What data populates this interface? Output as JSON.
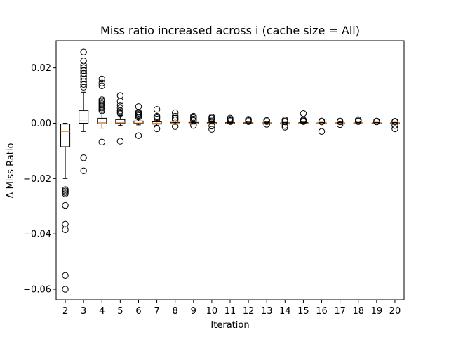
{
  "chart_data": {
    "type": "boxplot",
    "title": "Miss ratio increased across i (cache size = All)",
    "xlabel": "Iteration",
    "ylabel": "Δ Miss Ratio",
    "ylim": [
      -0.0638,
      0.0298
    ],
    "yticks": [
      0.02,
      0.0,
      -0.02,
      -0.04,
      -0.06
    ],
    "ytick_labels": [
      "0.02",
      "0.00",
      "−0.02",
      "−0.04",
      "−0.06"
    ],
    "grid": false,
    "categories": [
      "2",
      "3",
      "4",
      "5",
      "6",
      "7",
      "8",
      "9",
      "10",
      "11",
      "12",
      "13",
      "14",
      "15",
      "16",
      "17",
      "18",
      "19",
      "20"
    ],
    "boxes": [
      {
        "label": "2",
        "whislo": -0.02,
        "q1": -0.0085,
        "med": -0.003,
        "q3": -0.0003,
        "whishi": 0.0,
        "fliers": [
          -0.024,
          -0.0245,
          -0.025,
          -0.0255,
          -0.0297,
          -0.0365,
          -0.0385,
          -0.055,
          -0.06
        ]
      },
      {
        "label": "3",
        "whislo": -0.003,
        "q1": 0.0,
        "med": 0.0008,
        "q3": 0.0046,
        "whishi": 0.0112,
        "fliers": [
          0.013,
          0.014,
          0.015,
          0.016,
          0.017,
          0.018,
          0.019,
          0.02,
          0.021,
          0.0225,
          0.0257,
          -0.0125,
          -0.0172
        ]
      },
      {
        "label": "4",
        "whislo": -0.0018,
        "q1": -0.0002,
        "med": 0.0002,
        "q3": 0.0018,
        "whishi": 0.004,
        "fliers": [
          0.0045,
          0.005,
          0.0055,
          0.006,
          0.0065,
          0.007,
          0.0075,
          0.008,
          0.0085,
          0.0135,
          0.0145,
          0.016,
          -0.0068
        ]
      },
      {
        "label": "5",
        "whislo": -0.0008,
        "q1": -0.0001,
        "med": 0.0002,
        "q3": 0.0013,
        "whishi": 0.0028,
        "fliers": [
          0.0035,
          0.004,
          0.0045,
          0.0055,
          0.0065,
          0.008,
          0.01,
          -0.0065
        ]
      },
      {
        "label": "6",
        "whislo": -0.0006,
        "q1": -0.0001,
        "med": 0.0001,
        "q3": 0.0008,
        "whishi": 0.0016,
        "fliers": [
          0.0022,
          0.0028,
          0.0032,
          0.0036,
          0.004,
          0.006,
          -0.0045
        ]
      },
      {
        "label": "7",
        "whislo": -0.0008,
        "q1": -0.0003,
        "med": 0.0,
        "q3": 0.0005,
        "whishi": 0.0012,
        "fliers": [
          0.0015,
          0.002,
          0.0025,
          0.005,
          -0.002
        ]
      },
      {
        "label": "8",
        "whislo": -0.0004,
        "q1": -0.0001,
        "med": 0.0,
        "q3": 0.0003,
        "whishi": 0.0008,
        "fliers": [
          0.0012,
          0.0018,
          0.0025,
          0.0038,
          -0.0012
        ]
      },
      {
        "label": "9",
        "whislo": -0.0003,
        "q1": -0.0001,
        "med": 0.0,
        "q3": 0.0003,
        "whishi": 0.0007,
        "fliers": [
          0.001,
          0.0015,
          0.002,
          0.0025,
          -0.0008
        ]
      },
      {
        "label": "10",
        "whislo": -0.0003,
        "q1": -0.0001,
        "med": 0.0,
        "q3": 0.0002,
        "whishi": 0.0005,
        "fliers": [
          0.0008,
          0.0012,
          0.0018,
          0.0022,
          -0.001,
          -0.0022
        ]
      },
      {
        "label": "11",
        "whislo": -0.0002,
        "q1": 0.0,
        "med": 0.0,
        "q3": 0.0002,
        "whishi": 0.0004,
        "fliers": [
          0.0006,
          0.001,
          0.0014,
          0.0018
        ]
      },
      {
        "label": "12",
        "whislo": -0.0002,
        "q1": 0.0,
        "med": 0.0001,
        "q3": 0.0002,
        "whishi": 0.0004,
        "fliers": [
          0.0006,
          0.001,
          0.0014
        ]
      },
      {
        "label": "13",
        "whislo": -0.0002,
        "q1": -0.0001,
        "med": 0.0,
        "q3": 0.0001,
        "whishi": 0.0003,
        "fliers": [
          0.0006,
          0.001,
          -0.0004
        ]
      },
      {
        "label": "14",
        "whislo": -0.0003,
        "q1": -0.0001,
        "med": 0.0,
        "q3": 0.0001,
        "whishi": 0.0003,
        "fliers": [
          0.0005,
          0.0008,
          0.0012,
          -0.0008,
          -0.0014
        ]
      },
      {
        "label": "15",
        "whislo": -0.0001,
        "q1": 0.0,
        "med": 0.0,
        "q3": 0.0002,
        "whishi": 0.0004,
        "fliers": [
          0.0006,
          0.0009,
          0.0012,
          0.0035
        ]
      },
      {
        "label": "16",
        "whislo": -0.0002,
        "q1": -0.0001,
        "med": 0.0,
        "q3": 0.0001,
        "whishi": 0.0003,
        "fliers": [
          0.0005,
          0.0008,
          -0.003
        ]
      },
      {
        "label": "17",
        "whislo": -0.0002,
        "q1": -0.0001,
        "med": 0.0,
        "q3": 0.0001,
        "whishi": 0.0003,
        "fliers": [
          0.0005,
          0.0008,
          -0.0005
        ]
      },
      {
        "label": "18",
        "whislo": -0.0001,
        "q1": 0.0,
        "med": 0.0,
        "q3": 0.0001,
        "whishi": 0.0003,
        "fliers": [
          0.0006,
          0.0009,
          0.0013
        ]
      },
      {
        "label": "19",
        "whislo": -0.0002,
        "q1": -0.0001,
        "med": 0.0,
        "q3": 0.0001,
        "whishi": 0.0003,
        "fliers": [
          0.0005,
          0.0008
        ]
      },
      {
        "label": "20",
        "whislo": -0.0003,
        "q1": -0.0001,
        "med": 0.0,
        "q3": 0.0001,
        "whishi": 0.0003,
        "fliers": [
          0.0005,
          0.0007,
          -0.0008,
          -0.002
        ]
      }
    ],
    "colors": {
      "box": "#000000",
      "median": "#ff7f0e",
      "flier": "#000000",
      "background": "#ffffff"
    }
  }
}
